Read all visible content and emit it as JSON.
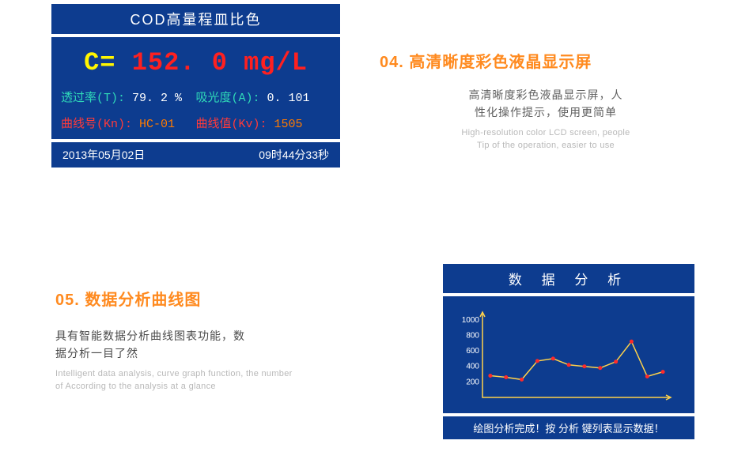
{
  "lcd": {
    "header": "COD高量程皿比色",
    "conc": {
      "label": "C= ",
      "value": "152. 0",
      "unit": " mg/L"
    },
    "metrics": {
      "transmission": {
        "label": "透过率(T):",
        "value": "79. 2 %"
      },
      "absorbance": {
        "label": "吸光度(A):",
        "value": "0. 101"
      },
      "curve_no": {
        "label": "曲线号(Kn):",
        "value": "HC-01"
      },
      "curve_val": {
        "label": "曲线值(Kv):",
        "value": "1505"
      }
    },
    "footer": {
      "date": "2013年05月02日",
      "time": "09时44分33秒"
    },
    "colors": {
      "bg": "#0d3c8f",
      "c_label": "#fff600",
      "c_value": "#ff2020",
      "teal": "#2fd9b8",
      "red": "#ff3a3a",
      "white": "#ffffff",
      "orange": "#ff7a00"
    }
  },
  "feature04": {
    "num": "04.",
    "title_zh": "高清晰度彩色液晶显示屏",
    "body_zh_line1": "高清晰度彩色液晶显示屏，人",
    "body_zh_line2": "性化操作提示，使用更简单",
    "body_en_line1": "High-resolution color LCD screen, people",
    "body_en_line2": "Tip of the operation, easier to use",
    "colors": {
      "accent": "#ff8a1f",
      "body": "#606060",
      "en": "#b8b8b8"
    }
  },
  "feature05": {
    "num": "05.",
    "title_zh": "数据分析曲线图",
    "body_zh_line1": "具有智能数据分析曲线图表功能，数",
    "body_zh_line2": "据分析一目了然",
    "body_en_line1": "Intelligent data analysis, curve graph function, the number",
    "body_en_line2": "of According to the analysis at a glance",
    "colors": {
      "accent": "#ff8a1f",
      "body": "#4a4a4a",
      "en": "#b8b8b8"
    }
  },
  "chart": {
    "header": "数 据 分 析",
    "footer": "绘图分析完成！按 分析 键列表显示数据！",
    "type": "line",
    "y_ticks": [
      200,
      400,
      600,
      800,
      1000
    ],
    "y_max": 1100,
    "x_count": 12,
    "values": [
      280,
      260,
      230,
      470,
      500,
      420,
      400,
      380,
      460,
      720,
      270,
      330
    ],
    "style": {
      "bg": "#0d3c8f",
      "axis_color": "#ffd24a",
      "line_color": "#ffd24a",
      "dot_color": "#ff2a2a",
      "label_color": "#ffffff",
      "line_width": 1.5,
      "dot_radius": 2.5,
      "label_fontsize": 10
    }
  }
}
